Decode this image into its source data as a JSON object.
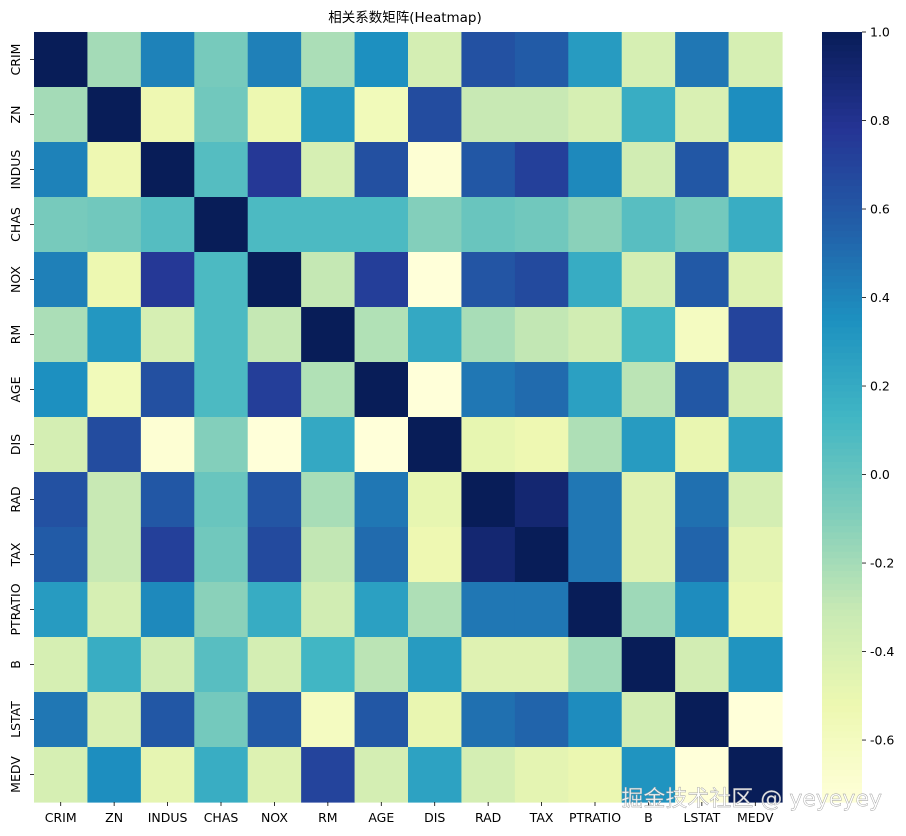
{
  "watermark": "掘金技术社区 @ yeyeyey",
  "chart_data": {
    "type": "heatmap",
    "title": "相关系数矩阵(Heatmap)",
    "variables": [
      "CRIM",
      "ZN",
      "INDUS",
      "CHAS",
      "NOX",
      "RM",
      "AGE",
      "DIS",
      "RAD",
      "TAX",
      "PTRATIO",
      "B",
      "LSTAT",
      "MEDV"
    ],
    "values": [
      [
        1.0,
        -0.2,
        0.41,
        -0.06,
        0.42,
        -0.22,
        0.35,
        -0.38,
        0.63,
        0.58,
        0.29,
        -0.39,
        0.46,
        -0.39
      ],
      [
        -0.2,
        1.0,
        -0.53,
        -0.04,
        -0.52,
        0.31,
        -0.57,
        0.66,
        -0.31,
        -0.31,
        -0.39,
        0.18,
        -0.41,
        0.36
      ],
      [
        0.41,
        -0.53,
        1.0,
        0.06,
        0.76,
        -0.39,
        0.64,
        -0.71,
        0.6,
        0.72,
        0.38,
        -0.36,
        0.6,
        -0.48
      ],
      [
        -0.06,
        -0.04,
        0.06,
        1.0,
        0.09,
        0.09,
        0.09,
        -0.1,
        -0.01,
        -0.04,
        -0.12,
        0.05,
        -0.05,
        0.18
      ],
      [
        0.42,
        -0.52,
        0.76,
        0.09,
        1.0,
        -0.3,
        0.73,
        -0.77,
        0.61,
        0.67,
        0.19,
        -0.38,
        0.59,
        -0.43
      ],
      [
        -0.22,
        0.31,
        -0.39,
        0.09,
        -0.3,
        1.0,
        -0.24,
        0.21,
        -0.21,
        -0.29,
        -0.36,
        0.13,
        -0.61,
        0.7
      ],
      [
        0.35,
        -0.57,
        0.64,
        0.09,
        0.73,
        -0.24,
        1.0,
        -0.75,
        0.46,
        0.51,
        0.26,
        -0.27,
        0.6,
        -0.38
      ],
      [
        -0.38,
        0.66,
        -0.71,
        -0.1,
        -0.77,
        0.21,
        -0.75,
        1.0,
        -0.49,
        -0.53,
        -0.23,
        0.29,
        -0.5,
        0.25
      ],
      [
        0.63,
        -0.31,
        0.6,
        -0.01,
        0.61,
        -0.21,
        0.46,
        -0.49,
        1.0,
        0.91,
        0.46,
        -0.44,
        0.49,
        -0.38
      ],
      [
        0.58,
        -0.31,
        0.72,
        -0.04,
        0.67,
        -0.29,
        0.51,
        -0.53,
        0.91,
        1.0,
        0.46,
        -0.44,
        0.54,
        -0.47
      ],
      [
        0.29,
        -0.39,
        0.38,
        -0.12,
        0.19,
        -0.36,
        0.26,
        -0.23,
        0.46,
        0.46,
        1.0,
        -0.18,
        0.37,
        -0.51
      ],
      [
        -0.39,
        0.18,
        -0.36,
        0.05,
        -0.38,
        0.13,
        -0.27,
        0.29,
        -0.44,
        -0.44,
        -0.18,
        1.0,
        -0.37,
        0.33
      ],
      [
        0.46,
        -0.41,
        0.6,
        -0.05,
        0.59,
        -0.61,
        0.6,
        -0.5,
        0.49,
        0.54,
        0.37,
        -0.37,
        1.0,
        -0.74
      ],
      [
        -0.39,
        0.36,
        -0.48,
        0.18,
        -0.43,
        0.7,
        -0.38,
        0.25,
        -0.38,
        -0.47,
        -0.51,
        0.33,
        -0.74,
        1.0
      ]
    ],
    "colormap": "YlGnBu",
    "vmin": -0.74,
    "vmax": 1.0,
    "colorbar_ticks": [
      1.0,
      0.8,
      0.6,
      0.4,
      0.2,
      0.0,
      -0.2,
      -0.4,
      -0.6
    ],
    "colorbar_tick_labels": [
      "1.0",
      "0.8",
      "0.6",
      "0.4",
      "0.2",
      "0.0",
      "-0.2",
      "-0.4",
      "-0.6"
    ],
    "palette": [
      "#ffffd9",
      "#edf8b1",
      "#c7e9b4",
      "#7fcdbb",
      "#41b6c4",
      "#1d91c0",
      "#225ea8",
      "#253494",
      "#081d58"
    ]
  }
}
